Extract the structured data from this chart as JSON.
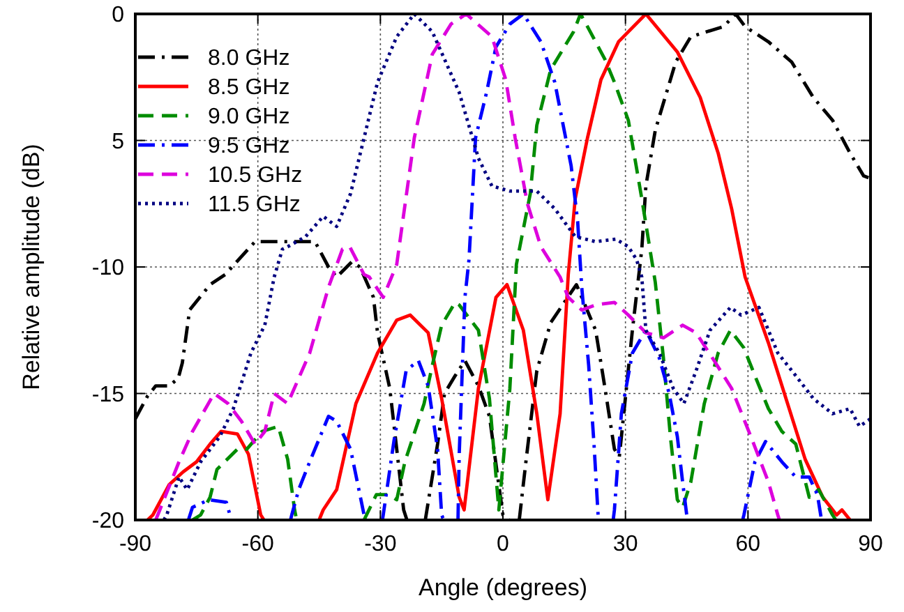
{
  "chart_data": {
    "type": "line",
    "xlabel": "Angle (degrees)",
    "ylabel": "Relative amplitude (dB)",
    "xlim": [
      -90,
      90
    ],
    "xticks": [
      -90,
      -60,
      -30,
      0,
      30,
      60,
      90
    ],
    "ylim": [
      -20,
      0
    ],
    "yticks": [
      -20,
      -15,
      -10,
      {
        "value": -5,
        "label": "5"
      },
      0
    ],
    "grid": true,
    "legend": "top left",
    "marker": "none",
    "series": [
      {
        "name": "8.0 GHz",
        "color": "#000000",
        "line_style": "dashdot",
        "x": [
          -90,
          -87,
          -85,
          -81.7,
          -79.5,
          -78.5,
          -76.7,
          -71.7,
          -68,
          -60.7,
          -54,
          -46,
          -42.7,
          -40.7,
          -37,
          -35,
          -31.7,
          -30.7,
          -27.7,
          -24.3,
          -23.5,
          -21,
          -19,
          -16,
          -14.3,
          -11.7,
          -9.3,
          -6,
          -3.3,
          0,
          1.5,
          3,
          4,
          5.7,
          8.3,
          11.7,
          16.7,
          18,
          22.7,
          25,
          27.3,
          28.5,
          31.7,
          34,
          35,
          37.3,
          42.3,
          46,
          54,
          57,
          59.3,
          65,
          70.7,
          76,
          80.7,
          85,
          88.3,
          90
        ],
        "values": [
          -16,
          -15.1,
          -14.7,
          -14.7,
          -14.4,
          -13.8,
          -11.7,
          -10.7,
          -10.3,
          -9,
          -9,
          -9,
          -10,
          -10.4,
          -9.8,
          -10,
          -11.2,
          -12.6,
          -14.8,
          -19.6,
          -20,
          null,
          -20,
          -17,
          -15,
          -14.3,
          -13.7,
          -14.7,
          -15.9,
          -19.8,
          -20,
          null,
          -20,
          -17.6,
          -14.1,
          -12.2,
          -11,
          -10.7,
          -12.5,
          -14.8,
          -17.2,
          -17.5,
          -12.5,
          -9.3,
          -6.8,
          -4.6,
          -1.9,
          -0.9,
          -0.5,
          0,
          -0.5,
          -1.1,
          -1.9,
          -3.3,
          -4.2,
          -5.5,
          -6.4,
          -6.5
        ]
      },
      {
        "name": "8.5 GHz",
        "color": "#ff0000",
        "line_style": "solid",
        "x": [
          -87,
          -85.7,
          -81.7,
          -78.3,
          -75,
          -71.7,
          -69,
          -65,
          -62.3,
          -59.3,
          -58.5,
          -52,
          -45,
          -44,
          -40.7,
          -36,
          -30.7,
          -26,
          -22.7,
          -18.3,
          -15,
          -10.7,
          -9.5,
          -6,
          -1.7,
          1,
          5,
          8.3,
          11,
          14,
          16,
          17.7,
          20.7,
          24,
          28.3,
          35,
          42.7,
          48.3,
          52.7,
          56,
          59.3,
          65,
          69.3,
          74,
          78.3,
          81.7,
          83,
          85
        ],
        "values": [
          -20,
          -19.8,
          -18.6,
          -18.1,
          -17.7,
          -17,
          -16.5,
          -16.6,
          -17.4,
          -19.8,
          -20,
          null,
          -20,
          -19.6,
          -18.8,
          -15.4,
          -13.4,
          -12.1,
          -11.9,
          -12.6,
          -15.2,
          -19.1,
          -19.6,
          -14.8,
          -11.2,
          -10.7,
          -12.5,
          -15.8,
          -19.2,
          -15.8,
          -10.3,
          -7.3,
          -4.9,
          -2.6,
          -1.1,
          0,
          -1.5,
          -3.3,
          -5.5,
          -7.7,
          -10.4,
          -13,
          -15.2,
          -17.6,
          -19.1,
          -19.8,
          -19.6,
          -20
        ]
      },
      {
        "name": "9.0 GHz",
        "color": "#008c00",
        "line_style": "dashed",
        "x": [
          -76,
          -74,
          -71.7,
          -70,
          -65,
          -62.7,
          -59,
          -55,
          -52.7,
          -51,
          -50.5,
          -42,
          -34,
          -31,
          -28,
          -26,
          -24,
          -19.3,
          -17.3,
          -15,
          -11.7,
          -10.7,
          -6,
          -3.3,
          -1,
          1.7,
          3.3,
          6.7,
          8.3,
          11.7,
          17.3,
          19,
          20.7,
          25,
          27.3,
          30.7,
          34,
          37.3,
          39.3,
          41,
          42.7,
          44,
          46,
          49.3,
          52.7,
          55.7,
          59,
          61.7,
          65,
          68.3,
          71.7,
          75,
          77.3,
          80.7,
          81.5
        ],
        "values": [
          -20,
          -19.8,
          -19.1,
          -18,
          -17.2,
          -17.2,
          -16.5,
          -16.3,
          -17.6,
          -19.6,
          -20,
          null,
          -20,
          -19,
          -19,
          -19.2,
          -17.7,
          -15.4,
          -13.9,
          -12.3,
          -11.4,
          -11.5,
          -12.5,
          -15.2,
          -19.6,
          -14.8,
          -9.9,
          -7.1,
          -4.4,
          -2.2,
          -0.7,
          0,
          -0.5,
          -1.8,
          -2.7,
          -4.2,
          -7.3,
          -10.6,
          -13.6,
          -16.7,
          -19.2,
          -19.5,
          -18.5,
          -15.4,
          -13.4,
          -12.5,
          -13.2,
          -14.3,
          -15.6,
          -16.5,
          -17,
          -19.1,
          -18.8,
          -19.8,
          -20
        ]
      },
      {
        "name": "9.5 GHz",
        "color": "#0000ff",
        "line_style": "dashdot",
        "x": [
          -77,
          -76,
          -72,
          -67.7,
          -66.5,
          -60,
          -52,
          -51.7,
          -50,
          -47.3,
          -42.7,
          -40.7,
          -37.3,
          -34,
          -33.5,
          -31,
          -29.5,
          -29.3,
          -26.7,
          -23.7,
          -20.7,
          -18.3,
          -16,
          -15,
          -14.5,
          -12.5,
          -11,
          -10.7,
          -9.3,
          -8.3,
          -6.7,
          -4,
          -1.7,
          1.7,
          5,
          9.3,
          12.7,
          15,
          16.7,
          18.3,
          19.3,
          21,
          22.3,
          23.3,
          23.7,
          25.5,
          27,
          27.3,
          29,
          31.7,
          35,
          38.3,
          40.7,
          42.7,
          44,
          45,
          45.3,
          52,
          58.7,
          59,
          61.7,
          64.3,
          68.3,
          71.7,
          75,
          77,
          78
        ],
        "values": [
          -20,
          -19.5,
          -19.2,
          -19.3,
          -20,
          null,
          -20,
          -19.8,
          -18.8,
          -17.7,
          -15.9,
          -16.1,
          -17.2,
          -19.8,
          -20,
          null,
          -20,
          -19.8,
          -16.9,
          -14.1,
          -13.7,
          -14.7,
          -17.2,
          -19.8,
          -20,
          null,
          -20,
          -17.4,
          -11.2,
          -9.7,
          -4.9,
          -3.1,
          -1.3,
          -0.4,
          0,
          -1.1,
          -2.7,
          -4.6,
          -6,
          -8.2,
          -10.8,
          -13.9,
          -17,
          -19.8,
          -20,
          null,
          -20,
          -19.6,
          -15.8,
          -13.4,
          -12.5,
          -13.6,
          -15,
          -16.7,
          -18.5,
          -19.8,
          -20,
          null,
          -20,
          -19.8,
          -17.7,
          -16.9,
          -17.7,
          -18.3,
          -18.3,
          -19,
          -20
        ]
      },
      {
        "name": "10.5 GHz",
        "color": "#dd00dd",
        "line_style": "dashed",
        "x": [
          -85,
          -84,
          -79.3,
          -76,
          -70.7,
          -67.3,
          -64,
          -60.7,
          -58.3,
          -56,
          -52.7,
          -47.3,
          -42.7,
          -39.3,
          -37.5,
          -34,
          -32.7,
          -29.3,
          -26,
          -21.7,
          -17.3,
          -12.7,
          -9,
          -2.7,
          0.7,
          3,
          6,
          9.3,
          14,
          16,
          19.3,
          22.7,
          27.3,
          30.7,
          35,
          39.3,
          44,
          47.3,
          51.7,
          56,
          60.7,
          65,
          67.3,
          67.7
        ],
        "values": [
          -20,
          -19.6,
          -17.7,
          -16.5,
          -15,
          -15.4,
          -16.1,
          -17,
          -16.5,
          -15,
          -15.4,
          -13.4,
          -10.8,
          -9.3,
          -9.2,
          -10.3,
          -10.4,
          -11.2,
          -9.9,
          -4.9,
          -1.6,
          -0.4,
          0,
          -0.9,
          -2.6,
          -4.9,
          -7.5,
          -9.2,
          -10.4,
          -11.2,
          -11.7,
          -11.5,
          -11.4,
          -11.9,
          -12.6,
          -12.8,
          -12.3,
          -12.6,
          -13.7,
          -14.8,
          -16.7,
          -18.5,
          -19.8,
          -20
        ]
      },
      {
        "name": "11.5 GHz",
        "color": "#000080",
        "line_style": "dotted",
        "x": [
          -83,
          -82.3,
          -79.3,
          -77.3,
          -74,
          -69.3,
          -66,
          -61.7,
          -58.3,
          -56,
          -54,
          -52.7,
          -48.3,
          -44,
          -40.7,
          -37.3,
          -34,
          -30.7,
          -26,
          -21.7,
          -17.3,
          -10.7,
          -6,
          -2.7,
          1.7,
          4,
          8.3,
          12.7,
          17.7,
          22.7,
          27.7,
          30.7,
          32.7,
          34,
          35,
          38.3,
          41.7,
          44.3,
          47.3,
          50.7,
          55.7,
          58.3,
          62.7,
          67.3,
          71.7,
          76,
          80.7,
          85,
          87.3,
          90
        ],
        "values": [
          -20,
          -19.8,
          -18.3,
          -18.8,
          -17.7,
          -16.7,
          -15.6,
          -13.4,
          -12.3,
          -10.4,
          -9.3,
          -9.2,
          -8.8,
          -8,
          -8.4,
          -7.1,
          -4.9,
          -2.7,
          -0.9,
          0,
          -0.7,
          -3.1,
          -5.7,
          -6.8,
          -7,
          -7,
          -7,
          -7.7,
          -8.8,
          -9,
          -8.9,
          -9.2,
          -9.7,
          -10.4,
          -12.5,
          -13.4,
          -14.8,
          -15.4,
          -14.1,
          -12.5,
          -11.6,
          -11.9,
          -11.6,
          -13.4,
          -14.3,
          -15.2,
          -15.8,
          -15.6,
          -16.3,
          -16
        ]
      }
    ]
  }
}
